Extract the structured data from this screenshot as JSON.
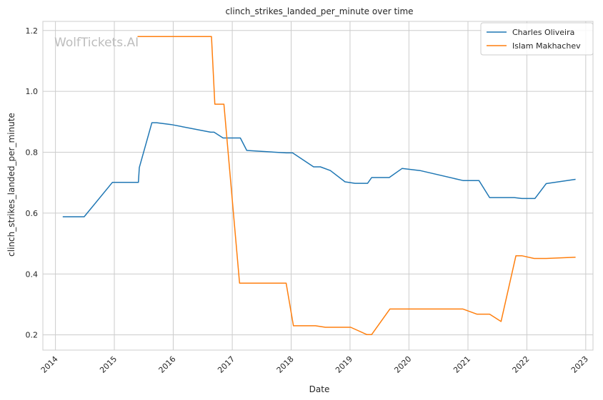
{
  "chart_data": {
    "type": "line",
    "title": "clinch_strikes_landed_per_minute over time",
    "xlabel": "Date",
    "ylabel": "clinch_strikes_landed_per_minute",
    "watermark": "WolfTickets.AI",
    "xlim": [
      "2013-10-15",
      "2023-02-15"
    ],
    "ylim": [
      0.15,
      1.23
    ],
    "x_ticks": [
      "2014",
      "2015",
      "2016",
      "2017",
      "2018",
      "2019",
      "2020",
      "2021",
      "2022",
      "2023"
    ],
    "y_ticks": [
      "0.2",
      "0.4",
      "0.6",
      "0.8",
      "1.0",
      "1.2"
    ],
    "grid": true,
    "legend_position": "top-right",
    "series": [
      {
        "name": "Charles Oliveira",
        "color": "#1f77b4",
        "points": [
          [
            "2014-02-15",
            0.588
          ],
          [
            "2014-06-28",
            0.588
          ],
          [
            "2014-12-20",
            0.701
          ],
          [
            "2015-05-30",
            0.701
          ],
          [
            "2015-06-05",
            0.75
          ],
          [
            "2015-08-22",
            0.897
          ],
          [
            "2015-09-20",
            0.897
          ],
          [
            "2015-12-20",
            0.891
          ],
          [
            "2016-08-20",
            0.866
          ],
          [
            "2016-09-10",
            0.866
          ],
          [
            "2016-11-05",
            0.847
          ],
          [
            "2017-02-20",
            0.847
          ],
          [
            "2017-04-01",
            0.806
          ],
          [
            "2017-12-01",
            0.798
          ],
          [
            "2018-01-10",
            0.798
          ],
          [
            "2018-05-20",
            0.752
          ],
          [
            "2018-07-01",
            0.752
          ],
          [
            "2018-09-01",
            0.74
          ],
          [
            "2018-12-01",
            0.703
          ],
          [
            "2019-02-01",
            0.698
          ],
          [
            "2019-04-20",
            0.698
          ],
          [
            "2019-05-15",
            0.717
          ],
          [
            "2019-09-01",
            0.717
          ],
          [
            "2019-11-20",
            0.747
          ],
          [
            "2020-03-10",
            0.74
          ],
          [
            "2020-12-01",
            0.707
          ],
          [
            "2021-03-10",
            0.707
          ],
          [
            "2021-05-15",
            0.651
          ],
          [
            "2021-10-15",
            0.651
          ],
          [
            "2021-12-01",
            0.648
          ],
          [
            "2022-02-20",
            0.648
          ],
          [
            "2022-05-01",
            0.697
          ],
          [
            "2022-10-30",
            0.711
          ]
        ]
      },
      {
        "name": "Islam Makhachev",
        "color": "#ff7f0e",
        "points": [
          [
            "2015-05-25",
            1.18
          ],
          [
            "2016-08-25",
            1.18
          ],
          [
            "2016-09-15",
            0.958
          ],
          [
            "2016-11-10",
            0.958
          ],
          [
            "2017-02-15",
            0.37
          ],
          [
            "2017-12-01",
            0.37
          ],
          [
            "2018-01-15",
            0.23
          ],
          [
            "2018-06-01",
            0.23
          ],
          [
            "2018-08-01",
            0.225
          ],
          [
            "2019-01-05",
            0.225
          ],
          [
            "2019-04-15",
            0.201
          ],
          [
            "2019-05-15",
            0.201
          ],
          [
            "2019-09-05",
            0.285
          ],
          [
            "2020-12-01",
            0.285
          ],
          [
            "2021-02-25",
            0.268
          ],
          [
            "2021-05-15",
            0.268
          ],
          [
            "2021-07-25",
            0.244
          ],
          [
            "2021-10-25",
            0.46
          ],
          [
            "2021-12-01",
            0.46
          ],
          [
            "2022-02-15",
            0.451
          ],
          [
            "2022-05-01",
            0.451
          ],
          [
            "2022-10-30",
            0.455
          ]
        ]
      }
    ]
  }
}
